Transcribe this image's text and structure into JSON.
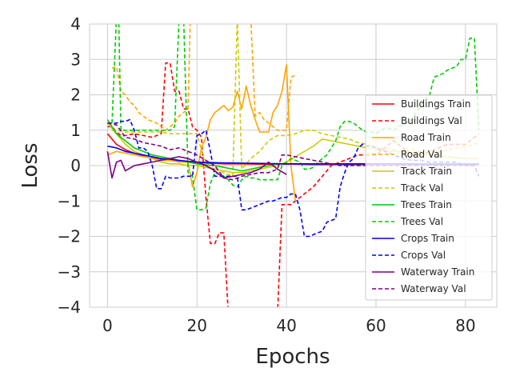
{
  "chart_data": {
    "type": "line",
    "title": "",
    "xlabel": "Epochs",
    "ylabel": "Loss",
    "xlim": [
      -4,
      87
    ],
    "ylim": [
      -4,
      4
    ],
    "xticks": [
      0,
      20,
      40,
      60,
      80
    ],
    "yticks": [
      -4,
      -3,
      -2,
      -1,
      0,
      1,
      2,
      3,
      4
    ],
    "grid": true,
    "legend_position": "center-right",
    "series": [
      {
        "name": "Buildings Train",
        "color": "#ff0000",
        "dash": "solid",
        "x": [
          0,
          2,
          4,
          6,
          8,
          10,
          12,
          14,
          16,
          18,
          20,
          22,
          24,
          26,
          28,
          30,
          34,
          38,
          42,
          46,
          50,
          55,
          60,
          65,
          70,
          75,
          80,
          83
        ],
        "y": [
          0.9,
          0.6,
          0.45,
          0.35,
          0.28,
          0.22,
          0.18,
          0.15,
          0.12,
          0.1,
          0.08,
          0.07,
          0.06,
          0.05,
          0.05,
          0.05,
          0.04,
          0.04,
          0.04,
          0.03,
          0.03,
          0.03,
          0.03,
          0.03,
          0.03,
          0.03,
          0.03,
          0.03
        ]
      },
      {
        "name": "Buildings Val",
        "color": "#ff0000",
        "dash": "dashed",
        "x": [
          0,
          1,
          2,
          3,
          4,
          6,
          8,
          10,
          12,
          13,
          14,
          15,
          16,
          17,
          18,
          19,
          20,
          21,
          22,
          23,
          24,
          25,
          26,
          27,
          28,
          29,
          30,
          31,
          32,
          33,
          34,
          35,
          36,
          37,
          38,
          39,
          40,
          41,
          42,
          44,
          46,
          48,
          50,
          52,
          54,
          56,
          58,
          60,
          62,
          64,
          66,
          68,
          70,
          72,
          74,
          76,
          78,
          80,
          82,
          83
        ],
        "y": [
          1.1,
          1.1,
          0.95,
          0.85,
          0.85,
          0.9,
          0.85,
          0.8,
          0.9,
          2.9,
          2.9,
          2.1,
          2.1,
          1.6,
          1.6,
          1.1,
          1.0,
          0.8,
          -0.9,
          -2.2,
          -2.2,
          -1.9,
          -1.9,
          -4.2,
          -4.2,
          -4.2,
          -4.2,
          -4.2,
          -4.2,
          -4.2,
          -4.2,
          -4.2,
          -4.2,
          -4.2,
          -4.2,
          -1.1,
          -1.1,
          -1.1,
          -1.0,
          -0.8,
          -0.6,
          -0.3,
          0.0,
          0.1,
          0.2,
          0.3,
          0.3,
          0.3,
          0.5,
          0.7,
          0.5,
          0.3,
          0.3,
          0.4,
          0.5,
          0.6,
          0.6,
          0.6,
          0.8,
          0.9
        ]
      },
      {
        "name": "Road Train",
        "color": "#ffa500",
        "dash": "solid",
        "x": [
          0,
          2,
          4,
          6,
          8,
          10,
          12,
          14,
          16,
          18,
          19,
          20,
          21,
          22,
          23,
          24,
          25,
          26,
          27,
          28,
          29,
          30,
          31,
          32,
          33,
          34,
          35,
          36,
          37,
          38,
          39,
          40,
          41,
          42
        ],
        "y": [
          0.3,
          0.4,
          0.35,
          0.3,
          0.25,
          0.2,
          0.15,
          0.15,
          0.1,
          0.1,
          -0.6,
          -0.2,
          0.5,
          0.8,
          1.3,
          1.5,
          1.6,
          1.7,
          1.55,
          1.65,
          2.1,
          1.6,
          2.25,
          1.7,
          1.3,
          0.95,
          0.95,
          0.95,
          1.5,
          1.7,
          2.1,
          2.85,
          0.0,
          -1.0
        ]
      },
      {
        "name": "Road Val",
        "color": "#ffa500",
        "dash": "dashed",
        "x": [
          1,
          2,
          3,
          4,
          5,
          6,
          7,
          8,
          9,
          10,
          11,
          12,
          13,
          14,
          15,
          16,
          17,
          18,
          18.5,
          19,
          28.5,
          29,
          30,
          31,
          32,
          33,
          34,
          35,
          36,
          37,
          38,
          39,
          40,
          41,
          42
        ],
        "y": [
          2.75,
          2.8,
          2.1,
          2.0,
          1.8,
          1.7,
          1.5,
          1.4,
          1.3,
          1.25,
          1.2,
          1.1,
          1.0,
          1.1,
          1.2,
          1.4,
          1.5,
          1.6,
          4.2,
          4.2,
          4.2,
          4.2,
          4.2,
          4.2,
          4.2,
          1.4,
          1.5,
          1.3,
          1.2,
          1.1,
          1.0,
          1.0,
          1.0,
          2.5,
          2.55
        ]
      },
      {
        "name": "Track Train",
        "color": "#cccc00",
        "dash": "solid",
        "x": [
          0,
          2,
          4,
          6,
          8,
          10,
          12,
          14,
          16,
          18,
          20,
          22,
          24,
          26,
          28,
          30,
          32,
          34,
          36,
          38,
          40,
          42,
          44,
          46,
          48,
          50,
          52,
          54,
          56,
          58,
          60,
          64,
          68,
          72,
          76,
          80,
          83
        ],
        "y": [
          1.2,
          0.9,
          0.6,
          0.4,
          0.3,
          0.2,
          0.1,
          0.05,
          0.05,
          0.0,
          0.0,
          -0.05,
          -0.1,
          -0.15,
          -0.2,
          -0.2,
          -0.15,
          -0.1,
          -0.05,
          0.0,
          0.1,
          0.25,
          0.4,
          0.55,
          0.75,
          0.7,
          0.65,
          0.6,
          0.55,
          0.5,
          0.45,
          0.4,
          0.35,
          0.3,
          0.25,
          0.2,
          0.2
        ]
      },
      {
        "name": "Track Val",
        "color": "#cccc00",
        "dash": "dashed",
        "x": [
          1,
          2,
          4,
          6,
          8,
          10,
          12,
          14,
          16,
          18,
          20,
          22,
          24,
          26,
          28,
          29,
          30,
          32,
          34,
          36,
          38,
          40,
          42,
          44,
          46,
          48,
          50,
          52,
          54,
          56,
          58,
          60,
          62,
          64,
          66,
          68,
          70,
          72,
          74,
          76,
          78,
          80,
          82,
          83
        ],
        "y": [
          1.0,
          1.0,
          0.95,
          0.95,
          0.95,
          0.95,
          0.95,
          0.9,
          0.9,
          0.9,
          0.9,
          0.0,
          -0.1,
          -0.2,
          -0.3,
          4.2,
          -0.1,
          0.2,
          0.4,
          0.7,
          0.85,
          0.85,
          0.9,
          1.0,
          1.0,
          0.9,
          0.85,
          0.8,
          0.75,
          0.65,
          0.6,
          0.5,
          0.5,
          0.45,
          0.4,
          0.45,
          0.4,
          0.45,
          0.4,
          0.45,
          0.5,
          0.55,
          0.6,
          0.65
        ]
      },
      {
        "name": "Trees Train",
        "color": "#00cc00",
        "dash": "solid",
        "x": [
          0,
          2,
          4,
          6,
          8,
          10,
          12,
          14,
          16,
          18,
          20,
          22,
          24,
          26,
          28,
          30,
          32,
          34,
          36,
          38,
          40,
          45,
          50,
          55,
          60,
          65,
          70,
          75,
          80,
          83
        ],
        "y": [
          1.3,
          0.9,
          0.7,
          0.5,
          0.4,
          0.3,
          0.25,
          0.2,
          0.15,
          0.1,
          0.05,
          0.02,
          0.0,
          -0.05,
          -0.1,
          -0.15,
          -0.1,
          -0.05,
          0.0,
          0.05,
          0.05,
          0.05,
          0.05,
          0.05,
          0.05,
          0.05,
          0.05,
          0.05,
          0.05,
          0.05
        ]
      },
      {
        "name": "Trees Val",
        "color": "#00cc00",
        "dash": "dashed",
        "x": [
          1,
          2,
          2.5,
          3,
          4,
          6,
          8,
          10,
          12,
          14,
          15,
          16,
          16.5,
          17,
          18,
          19,
          20,
          21,
          22,
          23,
          24,
          25,
          26,
          27,
          28,
          29,
          30,
          31,
          32,
          33,
          34,
          35,
          36,
          37,
          38,
          39,
          40,
          41,
          42,
          43,
          44,
          45,
          46,
          47,
          48,
          49,
          50,
          51,
          52,
          53,
          54,
          55,
          56,
          57,
          58,
          59,
          60,
          61,
          62,
          63,
          64,
          65,
          66,
          67,
          68,
          69,
          70,
          71,
          72,
          73,
          74,
          75,
          76,
          77,
          78,
          79,
          80,
          81,
          82,
          83
        ],
        "y": [
          1.2,
          4.2,
          4.2,
          1.0,
          1.0,
          1.0,
          1.0,
          1.0,
          1.0,
          1.0,
          1.1,
          4.2,
          4.2,
          4.2,
          -0.2,
          -0.3,
          -1.25,
          -1.25,
          -1.2,
          -0.5,
          -0.2,
          -0.25,
          -0.3,
          -0.4,
          -0.55,
          -0.6,
          -0.4,
          -0.3,
          -0.35,
          -0.35,
          -0.4,
          -0.4,
          -0.4,
          -0.4,
          -0.4,
          0.0,
          0.1,
          0.2,
          0.15,
          0.1,
          -0.1,
          -0.1,
          -0.05,
          0.1,
          0.2,
          0.3,
          0.5,
          0.7,
          1.1,
          1.25,
          1.25,
          1.2,
          1.1,
          1.0,
          0.95,
          0.95,
          0.9,
          1.0,
          1.05,
          1.05,
          1.0,
          1.1,
          1.15,
          1.2,
          1.3,
          1.5,
          1.7,
          1.85,
          2.0,
          2.5,
          2.55,
          2.6,
          2.7,
          2.75,
          2.8,
          3.0,
          3.0,
          3.6,
          3.6,
          1.0
        ]
      },
      {
        "name": "Crops Train",
        "color": "#0000ff",
        "dash": "solid",
        "x": [
          0,
          2,
          4,
          6,
          8,
          10,
          12,
          14,
          16,
          18,
          20,
          25,
          30,
          35,
          40,
          45,
          50,
          55,
          60,
          65,
          70,
          75,
          80,
          83
        ],
        "y": [
          0.55,
          0.5,
          0.4,
          0.35,
          0.3,
          0.25,
          0.2,
          0.18,
          0.15,
          0.12,
          0.1,
          0.08,
          0.07,
          0.06,
          0.05,
          0.05,
          0.05,
          0.05,
          0.05,
          0.05,
          0.04,
          0.04,
          0.04,
          0.04
        ]
      },
      {
        "name": "Crops Val",
        "color": "#0000ff",
        "dash": "dashed",
        "x": [
          0,
          1,
          2,
          3,
          4,
          5,
          6,
          7,
          8,
          9,
          10,
          11,
          12,
          13,
          14,
          15,
          16,
          17,
          18,
          19,
          20,
          21,
          22,
          23,
          24,
          25,
          26,
          27,
          28,
          29,
          30,
          31,
          32,
          33,
          34,
          35,
          36,
          37,
          38,
          39,
          40,
          41,
          42,
          43,
          44,
          45,
          46,
          47,
          48,
          49,
          50,
          51,
          52,
          53,
          54,
          55,
          56,
          57,
          58,
          59,
          60,
          62,
          64,
          66,
          68,
          70,
          72,
          74,
          76,
          78,
          80,
          82,
          83
        ],
        "y": [
          1.2,
          1.2,
          1.2,
          1.25,
          1.25,
          1.3,
          1.0,
          0.5,
          0.5,
          0.4,
          0.0,
          -0.65,
          -0.65,
          -0.3,
          -0.35,
          -0.35,
          -0.35,
          -0.3,
          -0.3,
          -0.3,
          0.85,
          0.9,
          1.0,
          0.4,
          -0.3,
          -0.3,
          -0.3,
          -0.3,
          -0.3,
          -0.3,
          -1.25,
          -1.25,
          -1.2,
          -1.15,
          -1.1,
          -1.05,
          -1.0,
          -1.0,
          -0.95,
          -0.9,
          -0.9,
          -0.8,
          -0.8,
          -1.25,
          -2.0,
          -2.0,
          -1.95,
          -1.9,
          -1.85,
          -1.6,
          -1.55,
          -1.5,
          -0.6,
          -0.2,
          0.1,
          0.2,
          0.5,
          0.6,
          0.55,
          0.55,
          0.5,
          0.4,
          0.3,
          0.2,
          0.15,
          0.15,
          0.1,
          0.1,
          0.1,
          0.1,
          0.0,
          0.0,
          -0.3
        ]
      },
      {
        "name": "Waterway Train",
        "color": "#800080",
        "dash": "solid",
        "x": [
          0,
          1,
          2,
          3,
          4,
          6,
          8,
          10,
          12,
          14,
          16,
          18,
          20,
          22,
          24,
          26,
          28,
          30,
          32,
          34,
          36,
          38,
          40
        ],
        "y": [
          0.4,
          -0.35,
          0.1,
          0.15,
          -0.15,
          0.0,
          0.05,
          0.1,
          0.15,
          0.2,
          0.25,
          0.2,
          0.1,
          0.0,
          -0.15,
          -0.35,
          -0.3,
          -0.25,
          -0.2,
          -0.1,
          0.1,
          -0.1,
          -0.25
        ]
      },
      {
        "name": "Waterway Val",
        "color": "#800080",
        "dash": "dashed",
        "x": [
          0,
          2,
          4,
          6,
          8,
          10,
          12,
          14,
          16,
          18,
          20,
          22,
          24,
          26,
          28,
          30,
          32,
          34,
          36,
          38,
          39,
          40,
          42,
          44,
          46,
          48,
          50,
          52,
          54,
          56,
          58,
          60,
          62,
          64,
          66,
          68,
          70,
          72,
          74,
          76,
          78,
          80,
          82
        ],
        "y": [
          1.2,
          1.15,
          0.8,
          0.75,
          0.65,
          0.6,
          0.55,
          0.45,
          0.5,
          0.4,
          0.3,
          0.15,
          0.0,
          -0.35,
          -0.4,
          -0.3,
          -0.25,
          -0.2,
          -0.2,
          -0.1,
          0.3,
          0.3,
          0.25,
          0.2,
          0.15,
          0.1,
          0.05,
          0.0,
          0.0,
          0.0,
          0.0,
          0.0,
          0.0,
          0.0,
          0.0,
          0.0,
          0.0,
          0.0,
          0.0,
          0.0,
          0.0,
          0.0,
          0.0
        ]
      }
    ]
  }
}
